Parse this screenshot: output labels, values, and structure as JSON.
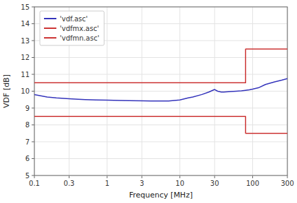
{
  "chart_data": {
    "type": "line",
    "xlabel": "Frequency [MHz]",
    "ylabel": "VDF [dB]",
    "log": "x",
    "grid": true,
    "legend": "upper left",
    "xlim": [
      0.1,
      300
    ],
    "ylim": [
      5,
      15
    ],
    "xticks": [
      0.1,
      0.3,
      1,
      3,
      10,
      30,
      100,
      300
    ],
    "yticks": [
      5,
      6,
      7,
      8,
      9,
      10,
      11,
      12,
      13,
      14,
      15
    ],
    "series": [
      {
        "name": "'vdf.asc'",
        "color": "#3333bb",
        "x": [
          0.1,
          0.15,
          0.2,
          0.3,
          0.4,
          0.5,
          0.7,
          1.0,
          1.5,
          2.0,
          3.0,
          4.0,
          5.0,
          7.0,
          10.0,
          13.0,
          15.0,
          20.0,
          25.0,
          30.0,
          33.0,
          37.0,
          40.0,
          50.0,
          60.0,
          70.0,
          80.0,
          90.0,
          100.0,
          120.0,
          150.0,
          200.0,
          250.0,
          300.0
        ],
        "values": [
          9.8,
          9.65,
          9.6,
          9.55,
          9.52,
          9.5,
          9.48,
          9.47,
          9.45,
          9.44,
          9.43,
          9.42,
          9.42,
          9.42,
          9.48,
          9.6,
          9.65,
          9.8,
          9.95,
          10.1,
          10.0,
          9.95,
          9.95,
          9.98,
          10.0,
          10.02,
          10.05,
          10.08,
          10.12,
          10.2,
          10.4,
          10.55,
          10.65,
          10.75
        ]
      },
      {
        "name": "'vdfmx.asc'",
        "color": "#cc3333",
        "x": [
          0.1,
          80,
          80,
          300
        ],
        "values": [
          10.5,
          10.5,
          12.5,
          12.5
        ]
      },
      {
        "name": "'vdfmn.asc'",
        "color": "#cc3333",
        "x": [
          0.1,
          80,
          80,
          300
        ],
        "values": [
          8.5,
          8.5,
          7.5,
          7.5
        ]
      }
    ]
  }
}
